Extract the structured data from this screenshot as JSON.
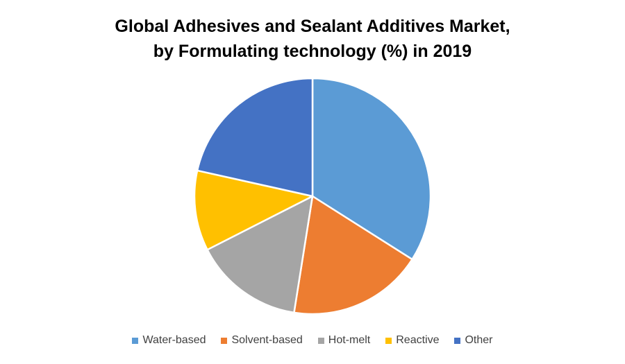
{
  "chart_data": {
    "type": "pie",
    "title_lines": [
      "Global Adhesives and Sealant Additives Market,",
      "by Formulating technology (%) in 2019"
    ],
    "categories": [
      "Water-based",
      "Solvent-based",
      "Hot-melt",
      "Reactive",
      "Other"
    ],
    "values": [
      34,
      18.5,
      15,
      11,
      21.5
    ],
    "colors": [
      "#5B9BD5",
      "#ED7D31",
      "#A5A5A5",
      "#FFC000",
      "#4472C4"
    ],
    "legend_position": "bottom"
  }
}
